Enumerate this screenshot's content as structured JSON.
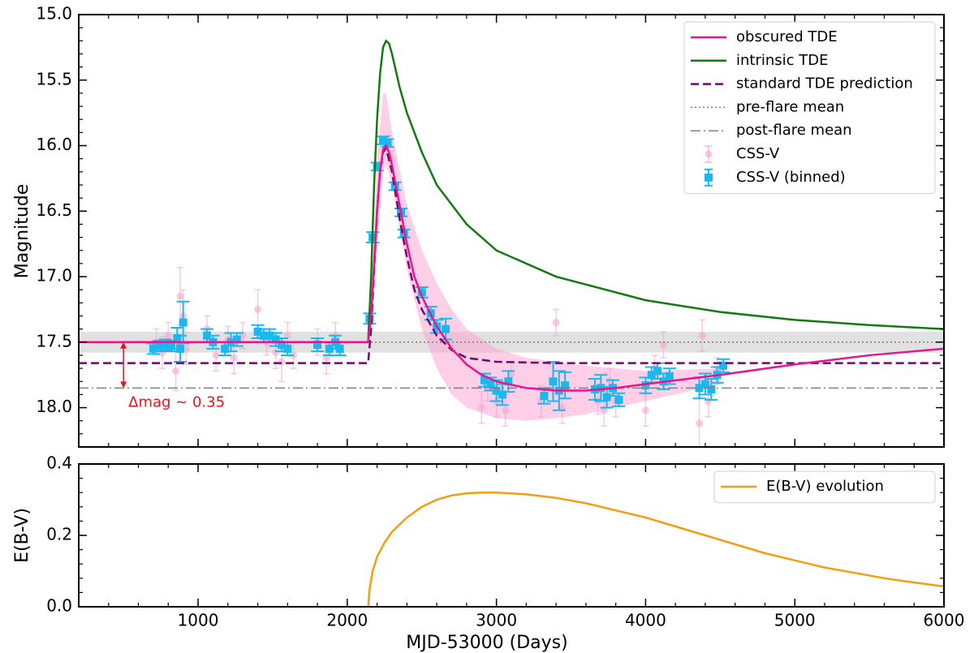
{
  "chart_data": [
    {
      "type": "line",
      "ylabel": "Magnitude",
      "xlim": [
        200,
        6000
      ],
      "xticks": [
        1000,
        2000,
        3000,
        4000,
        5000,
        6000
      ],
      "ylim": [
        15.0,
        18.3
      ],
      "inverted": true,
      "yticks": [
        {
          "value": 15.0,
          "label": "15.0"
        },
        15.5,
        {
          "value": 16.0,
          "label": "16.0"
        },
        16.5,
        {
          "value": 17.0,
          "label": "17.0"
        },
        17.5,
        {
          "value": 18.0,
          "label": "18.0"
        }
      ],
      "legend": "upper right",
      "mean_band": {
        "color": "#d9d9d9",
        "range": [
          17.42,
          17.58
        ]
      },
      "band": {
        "color": "#ff9ecf",
        "x": [
          2160,
          2200,
          2240,
          2260,
          2300,
          2400,
          2500,
          2600,
          2700,
          2800,
          3000,
          3200,
          3400,
          3600,
          3800,
          4000,
          4500
        ],
        "lower": [
          17.2,
          16.1,
          15.6,
          15.6,
          15.9,
          16.45,
          16.8,
          17.05,
          17.25,
          17.4,
          17.55,
          17.62,
          17.65,
          17.68,
          17.7,
          17.72,
          17.7
        ],
        "upper": [
          17.35,
          16.8,
          16.2,
          16.15,
          16.3,
          16.95,
          17.4,
          17.7,
          17.9,
          18.0,
          18.08,
          18.1,
          18.08,
          18.05,
          18.0,
          17.95,
          17.82
        ]
      },
      "series": [
        {
          "name": "obscured TDE",
          "kind": "line",
          "color": "#e8158c",
          "style": "solid",
          "x": [
            200,
            2140,
            2160,
            2180,
            2200,
            2220,
            2240,
            2260,
            2280,
            2300,
            2350,
            2400,
            2450,
            2500,
            2600,
            2700,
            2800,
            2900,
            3000,
            3200,
            3400,
            3600,
            3800,
            4000,
            4500,
            5000,
            5500,
            6000
          ],
          "values": [
            17.5,
            17.5,
            17.3,
            16.9,
            16.5,
            16.2,
            16.03,
            16.0,
            16.05,
            16.15,
            16.45,
            16.75,
            17.0,
            17.15,
            17.38,
            17.55,
            17.67,
            17.75,
            17.8,
            17.85,
            17.87,
            17.87,
            17.85,
            17.82,
            17.75,
            17.67,
            17.6,
            17.55
          ]
        },
        {
          "name": "intrinsic TDE",
          "kind": "line",
          "color": "#127a12",
          "style": "solid",
          "x": [
            200,
            2140,
            2160,
            2180,
            2200,
            2220,
            2240,
            2260,
            2280,
            2300,
            2350,
            2400,
            2500,
            2600,
            2800,
            3000,
            3400,
            4000,
            4500,
            5000,
            5500,
            6000
          ],
          "values": [
            17.5,
            17.5,
            17.0,
            16.3,
            15.8,
            15.45,
            15.25,
            15.2,
            15.22,
            15.3,
            15.55,
            15.75,
            16.05,
            16.3,
            16.6,
            16.8,
            17.0,
            17.18,
            17.27,
            17.33,
            17.37,
            17.4
          ]
        },
        {
          "name": "standard TDE prediction",
          "kind": "line",
          "color": "#6e0a6e",
          "style": "dashed",
          "x": [
            200,
            2140,
            2160,
            2180,
            2200,
            2220,
            2240,
            2260,
            2300,
            2350,
            2400,
            2450,
            2500,
            2600,
            2700,
            2800,
            3000,
            3400,
            6000
          ],
          "values": [
            17.66,
            17.66,
            17.4,
            16.95,
            16.5,
            16.2,
            16.05,
            16.02,
            16.2,
            16.55,
            16.85,
            17.1,
            17.25,
            17.45,
            17.56,
            17.62,
            17.65,
            17.66,
            17.66
          ]
        },
        {
          "name": "pre-flare mean",
          "kind": "hline",
          "color": "#808080",
          "style": "dotted",
          "value": 17.5
        },
        {
          "name": "post-flare mean",
          "kind": "hline",
          "color": "#808080",
          "style": "dashdot",
          "value": 17.85
        },
        {
          "name": "CSS-V",
          "kind": "scatter",
          "marker": "circle",
          "color": "#f6a6d0",
          "x": [
            720,
            760,
            800,
            850,
            880,
            900,
            920,
            1060,
            1120,
            1200,
            1240,
            1300,
            1400,
            1460,
            1520,
            1560,
            1600,
            1640,
            1800,
            1860,
            1920,
            2280,
            2300,
            2900,
            2940,
            3000,
            3060,
            3100,
            3300,
            3400,
            3440,
            3680,
            3720,
            3760,
            3800,
            4000,
            4060,
            4120,
            4360,
            4380,
            4420,
            4480
          ],
          "values": [
            17.5,
            17.58,
            17.45,
            17.72,
            17.15,
            17.3,
            17.55,
            17.4,
            17.6,
            17.48,
            17.62,
            17.45,
            17.25,
            17.5,
            17.58,
            17.65,
            17.45,
            17.6,
            17.5,
            17.62,
            17.45,
            15.98,
            16.1,
            18.0,
            17.85,
            17.95,
            18.02,
            17.75,
            17.95,
            17.35,
            18.0,
            17.95,
            18.02,
            17.8,
            17.95,
            18.02,
            17.7,
            17.52,
            18.12,
            17.45,
            17.95,
            17.72
          ],
          "errors": [
            0.1,
            0.12,
            0.1,
            0.15,
            0.22,
            0.2,
            0.12,
            0.1,
            0.12,
            0.1,
            0.12,
            0.1,
            0.15,
            0.1,
            0.12,
            0.15,
            0.1,
            0.1,
            0.1,
            0.12,
            0.1,
            0.06,
            0.06,
            0.12,
            0.1,
            0.12,
            0.12,
            0.1,
            0.12,
            0.1,
            0.12,
            0.1,
            0.12,
            0.1,
            0.12,
            0.12,
            0.1,
            0.1,
            0.2,
            0.12,
            0.12,
            0.1
          ]
        },
        {
          "name": "CSS-V (binned)",
          "kind": "scatter",
          "marker": "square",
          "color": "#1ab8f0",
          "x": [
            700,
            740,
            780,
            820,
            860,
            880,
            900,
            1060,
            1100,
            1180,
            1220,
            1260,
            1400,
            1440,
            1480,
            1520,
            1560,
            1600,
            1800,
            1880,
            1920,
            1950,
            2150,
            2170,
            2200,
            2240,
            2270,
            2320,
            2360,
            2380,
            2500,
            2560,
            2600,
            2660,
            2920,
            2960,
            3000,
            3040,
            3080,
            3320,
            3380,
            3420,
            3460,
            3660,
            3700,
            3740,
            3780,
            3820,
            4000,
            4040,
            4080,
            4120,
            4160,
            4360,
            4400,
            4440,
            4480,
            4520
          ],
          "values": [
            17.55,
            17.53,
            17.52,
            17.53,
            17.47,
            17.55,
            17.35,
            17.45,
            17.5,
            17.55,
            17.5,
            17.48,
            17.42,
            17.45,
            17.45,
            17.48,
            17.52,
            17.55,
            17.52,
            17.55,
            17.5,
            17.55,
            17.32,
            16.7,
            16.16,
            15.96,
            15.98,
            16.31,
            16.51,
            16.67,
            17.12,
            17.28,
            17.38,
            17.4,
            17.79,
            17.82,
            17.87,
            17.9,
            17.8,
            17.91,
            17.8,
            17.87,
            17.83,
            17.86,
            17.85,
            17.92,
            17.85,
            17.94,
            17.83,
            17.75,
            17.72,
            17.8,
            17.76,
            17.85,
            17.82,
            17.86,
            17.75,
            17.68
          ],
          "errors": [
            0.04,
            0.04,
            0.04,
            0.04,
            0.08,
            0.1,
            0.16,
            0.05,
            0.05,
            0.05,
            0.07,
            0.05,
            0.05,
            0.05,
            0.05,
            0.05,
            0.05,
            0.05,
            0.05,
            0.05,
            0.05,
            0.05,
            0.04,
            0.04,
            0.03,
            0.03,
            0.03,
            0.03,
            0.03,
            0.03,
            0.04,
            0.05,
            0.05,
            0.08,
            0.05,
            0.05,
            0.08,
            0.08,
            0.08,
            0.06,
            0.15,
            0.15,
            0.1,
            0.08,
            0.1,
            0.08,
            0.06,
            0.05,
            0.06,
            0.06,
            0.06,
            0.06,
            0.06,
            0.08,
            0.08,
            0.08,
            0.06,
            0.05
          ]
        }
      ],
      "annotation": {
        "text": "Δmag ~ 0.35",
        "color": "#e8141c",
        "x": 500,
        "from": 17.5,
        "to": 17.85
      }
    },
    {
      "type": "line",
      "xlabel": "MJD-53000 (Days)",
      "ylabel": "E(B-V)",
      "xlim": [
        200,
        6000
      ],
      "xticks": [
        1000,
        2000,
        3000,
        4000,
        5000,
        6000
      ],
      "ylim": [
        0,
        0.4
      ],
      "yticks": [
        {
          "value": 0,
          "label": "0.0"
        },
        0.2,
        0.4
      ],
      "legend": "upper right",
      "series": [
        {
          "name": "E(B-V) evolution",
          "kind": "line",
          "color": "#f59d10",
          "style": "solid",
          "x": [
            2140,
            2150,
            2170,
            2200,
            2250,
            2300,
            2400,
            2500,
            2600,
            2700,
            2800,
            2900,
            3000,
            3200,
            3400,
            3600,
            3800,
            4000,
            4200,
            4400,
            4600,
            4800,
            5000,
            5200,
            5400,
            5600,
            5800,
            6000
          ],
          "values": [
            0,
            0.05,
            0.1,
            0.14,
            0.18,
            0.21,
            0.25,
            0.28,
            0.3,
            0.312,
            0.318,
            0.32,
            0.32,
            0.315,
            0.305,
            0.29,
            0.27,
            0.25,
            0.225,
            0.2,
            0.175,
            0.15,
            0.13,
            0.11,
            0.095,
            0.08,
            0.068,
            0.057
          ]
        }
      ]
    }
  ]
}
